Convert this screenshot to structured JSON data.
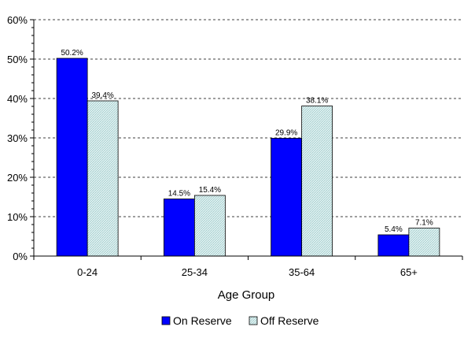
{
  "chart_data": {
    "type": "bar",
    "title": "",
    "xlabel": "Age Group",
    "ylabel": "",
    "categories": [
      "0-24",
      "25-34",
      "35-64",
      "65+"
    ],
    "series": [
      {
        "name": "On Reserve",
        "values": [
          50.2,
          14.5,
          29.9,
          5.4
        ],
        "labels": [
          "50.2%",
          "14.5%",
          "29.9%",
          "5.4%"
        ],
        "color": "#0000ff",
        "pattern": "solid"
      },
      {
        "name": "Off Reserve",
        "values": [
          39.4,
          15.4,
          38.1,
          7.1
        ],
        "labels": [
          "39.4%",
          "15.4%",
          "38.1%",
          "7.1%"
        ],
        "color": "#c6e7e7",
        "pattern": "diagonal-hatch"
      }
    ],
    "ylim": [
      0,
      60
    ],
    "yticks": [
      "0%",
      "10%",
      "20%",
      "30%",
      "40%",
      "50%",
      "60%"
    ],
    "grid": "horizontal dashed",
    "legend_position": "bottom-center"
  }
}
